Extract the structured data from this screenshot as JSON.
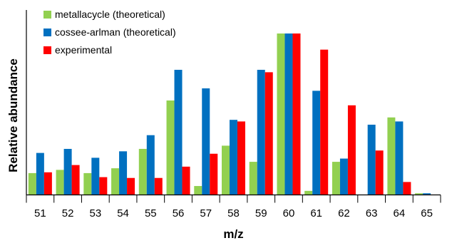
{
  "chart_data": {
    "type": "bar",
    "title": "",
    "xlabel": "m/z",
    "ylabel": "Relative abundance",
    "categories": [
      "51",
      "52",
      "53",
      "54",
      "55",
      "56",
      "57",
      "58",
      "59",
      "60",
      "61",
      "62",
      "63",
      "64",
      "65"
    ],
    "ylim": [
      0,
      100
    ],
    "legend_position": "top-left",
    "grid": false,
    "y_ticks_shown": false,
    "series": [
      {
        "name": "metallacycle (theoretical)",
        "color": "#92D050",
        "values": [
          13.5,
          15.5,
          13.5,
          16.5,
          28.5,
          58.5,
          5.5,
          30.5,
          20.5,
          100,
          2.5,
          20.5,
          0,
          48,
          1
        ]
      },
      {
        "name": "cossee-arlman (theoretical)",
        "color": "#0070C0",
        "values": [
          26,
          28.5,
          23,
          27,
          37,
          77.5,
          66,
          46.5,
          77.5,
          100,
          64.5,
          22.5,
          43.5,
          45.5,
          1
        ]
      },
      {
        "name": "experimental",
        "color": "#FF0000",
        "values": [
          14,
          18.5,
          11,
          10.5,
          10.5,
          17.5,
          25.5,
          45.5,
          76,
          100,
          90,
          55.5,
          27.5,
          8,
          0
        ]
      }
    ]
  }
}
